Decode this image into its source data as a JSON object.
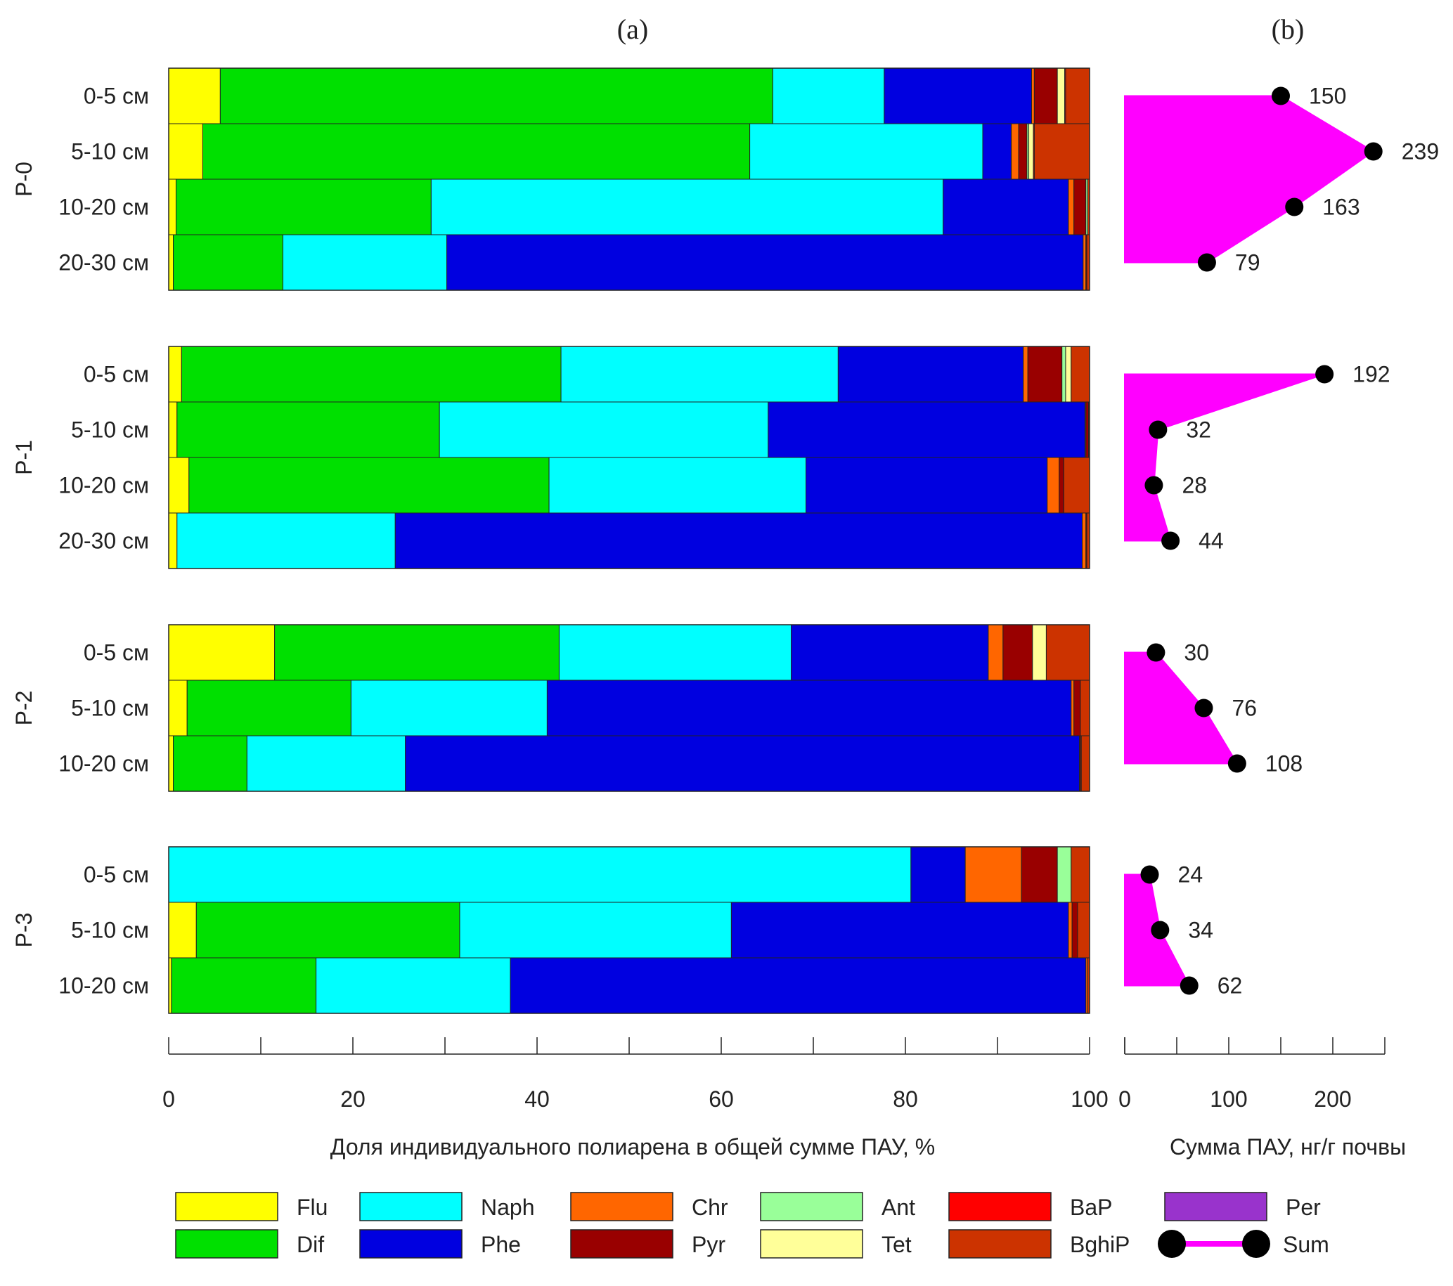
{
  "chart_data": {
    "type": "stacked-horizontal-bar-with-profile",
    "panel_a_label": "(a)",
    "panel_b_label": "(b)",
    "xlabel_a": "Доля индивидуального полиарена в общей сумме ПАУ, %",
    "xlabel_b": "Сумма ПАУ, нг/г почвы",
    "xlim_a": [
      0,
      100
    ],
    "xticks_a": [
      0,
      20,
      40,
      60,
      80,
      100
    ],
    "xlim_b": [
      0,
      250
    ],
    "xticks_b": [
      0,
      100,
      200
    ],
    "components": [
      "Flu",
      "Dif",
      "Naph",
      "Phe",
      "Chr",
      "Pyr",
      "Ant",
      "Tet",
      "BaP",
      "BghiP",
      "Per"
    ],
    "colors": {
      "Flu": "#FFFF00",
      "Dif": "#00E000",
      "Naph": "#00FFFF",
      "Phe": "#0000E0",
      "Chr": "#FF6600",
      "Pyr": "#990000",
      "Ant": "#99FF99",
      "Tet": "#FFFF99",
      "BaP": "#FF0000",
      "BghiP": "#CC3300",
      "Per": "#9933CC",
      "Sum": "#FF00FF",
      "Marker": "#000000"
    },
    "legend": [
      "Flu",
      "Dif",
      "Naph",
      "Phe",
      "Chr",
      "Pyr",
      "Ant",
      "Tet",
      "BaP",
      "BghiP",
      "Per",
      "Sum"
    ],
    "groups": [
      {
        "name": "P-0",
        "rows": [
          {
            "label": "0-5 см",
            "sum": 150,
            "values": {
              "Flu": 5.6,
              "Dif": 60.0,
              "Naph": 12.1,
              "Phe": 16.0,
              "Chr": 0.3,
              "Pyr": 2.5,
              "Ant": 0.0,
              "Tet": 0.8,
              "BaP": 0.1,
              "BghiP": 2.6,
              "Per": 0.0
            }
          },
          {
            "label": "5-10 см",
            "sum": 239,
            "values": {
              "Flu": 3.7,
              "Dif": 59.4,
              "Naph": 25.3,
              "Phe": 3.1,
              "Chr": 0.8,
              "Pyr": 0.9,
              "Ant": 0.2,
              "Tet": 0.5,
              "BaP": 0.1,
              "BghiP": 6.0,
              "Per": 0.0
            }
          },
          {
            "label": "10-20 см",
            "sum": 163,
            "values": {
              "Flu": 0.8,
              "Dif": 27.7,
              "Naph": 55.6,
              "Phe": 13.6,
              "Chr": 0.6,
              "Pyr": 1.3,
              "Ant": 0.2,
              "Tet": 0.0,
              "BaP": 0.0,
              "BghiP": 0.2,
              "Per": 0.0
            }
          },
          {
            "label": "20-30 см",
            "sum": 79,
            "values": {
              "Flu": 0.5,
              "Dif": 11.9,
              "Naph": 17.8,
              "Phe": 69.1,
              "Chr": 0.3,
              "Pyr": 0.1,
              "Ant": 0.0,
              "Tet": 0.0,
              "BaP": 0.0,
              "BghiP": 0.3,
              "Per": 0.0
            }
          }
        ]
      },
      {
        "name": "P-1",
        "rows": [
          {
            "label": "0-5 см",
            "sum": 192,
            "values": {
              "Flu": 1.4,
              "Dif": 41.2,
              "Naph": 30.1,
              "Phe": 20.1,
              "Chr": 0.5,
              "Pyr": 3.7,
              "Ant": 0.4,
              "Tet": 0.6,
              "BaP": 0.0,
              "BghiP": 2.0,
              "Per": 0.0
            }
          },
          {
            "label": "5-10 см",
            "sum": 32,
            "values": {
              "Flu": 0.9,
              "Dif": 28.5,
              "Naph": 35.7,
              "Phe": 34.4,
              "Chr": 0.1,
              "Pyr": 0.3,
              "Ant": 0.0,
              "Tet": 0.0,
              "BaP": 0.0,
              "BghiP": 0.1,
              "Per": 0.0
            }
          },
          {
            "label": "10-20 см",
            "sum": 28,
            "values": {
              "Flu": 2.2,
              "Dif": 39.1,
              "Naph": 27.9,
              "Phe": 26.2,
              "Chr": 1.3,
              "Pyr": 0.5,
              "Ant": 0.0,
              "Tet": 0.0,
              "BaP": 0.0,
              "BghiP": 2.8,
              "Per": 0.0
            }
          },
          {
            "label": "20-30 см",
            "sum": 44,
            "values": {
              "Flu": 0.9,
              "Dif": 0.0,
              "Naph": 23.7,
              "Phe": 74.6,
              "Chr": 0.4,
              "Pyr": 0.1,
              "Ant": 0.0,
              "Tet": 0.0,
              "BaP": 0.0,
              "BghiP": 0.3,
              "Per": 0.0
            }
          }
        ]
      },
      {
        "name": "P-2",
        "rows": [
          {
            "label": "0-5 см",
            "sum": 30,
            "values": {
              "Flu": 11.5,
              "Dif": 30.9,
              "Naph": 25.2,
              "Phe": 21.4,
              "Chr": 1.6,
              "Pyr": 3.2,
              "Ant": 0.0,
              "Tet": 1.5,
              "BaP": 0.0,
              "BghiP": 4.7,
              "Per": 0.0
            }
          },
          {
            "label": "5-10 см",
            "sum": 76,
            "values": {
              "Flu": 2.0,
              "Dif": 17.8,
              "Naph": 21.3,
              "Phe": 56.9,
              "Chr": 0.3,
              "Pyr": 0.7,
              "Ant": 0.0,
              "Tet": 0.0,
              "BaP": 0.0,
              "BghiP": 1.0,
              "Per": 0.0
            }
          },
          {
            "label": "10-20 см",
            "sum": 108,
            "values": {
              "Flu": 0.5,
              "Dif": 8.0,
              "Naph": 17.2,
              "Phe": 73.2,
              "Chr": 0.1,
              "Pyr": 0.1,
              "Ant": 0.0,
              "Tet": 0.0,
              "BaP": 0.0,
              "BghiP": 0.9,
              "Per": 0.0
            }
          }
        ]
      },
      {
        "name": "P-3",
        "rows": [
          {
            "label": "0-5 см",
            "sum": 24,
            "values": {
              "Flu": 0.0,
              "Dif": 0.0,
              "Naph": 80.6,
              "Phe": 5.9,
              "Chr": 6.1,
              "Pyr": 3.9,
              "Ant": 1.5,
              "Tet": 0.0,
              "BaP": 0.0,
              "BghiP": 2.0,
              "Per": 0.0
            }
          },
          {
            "label": "5-10 см",
            "sum": 34,
            "values": {
              "Flu": 3.0,
              "Dif": 28.6,
              "Naph": 29.5,
              "Phe": 36.6,
              "Chr": 0.4,
              "Pyr": 0.6,
              "Ant": 0.0,
              "Tet": 0.0,
              "BaP": 0.0,
              "BghiP": 1.3,
              "Per": 0.0
            }
          },
          {
            "label": "10-20 см",
            "sum": 62,
            "values": {
              "Flu": 0.3,
              "Dif": 15.7,
              "Naph": 21.1,
              "Phe": 62.5,
              "Chr": 0.2,
              "Pyr": 0.0,
              "Ant": 0.0,
              "Tet": 0.0,
              "BaP": 0.0,
              "BghiP": 0.2,
              "Per": 0.0
            }
          }
        ]
      }
    ]
  }
}
